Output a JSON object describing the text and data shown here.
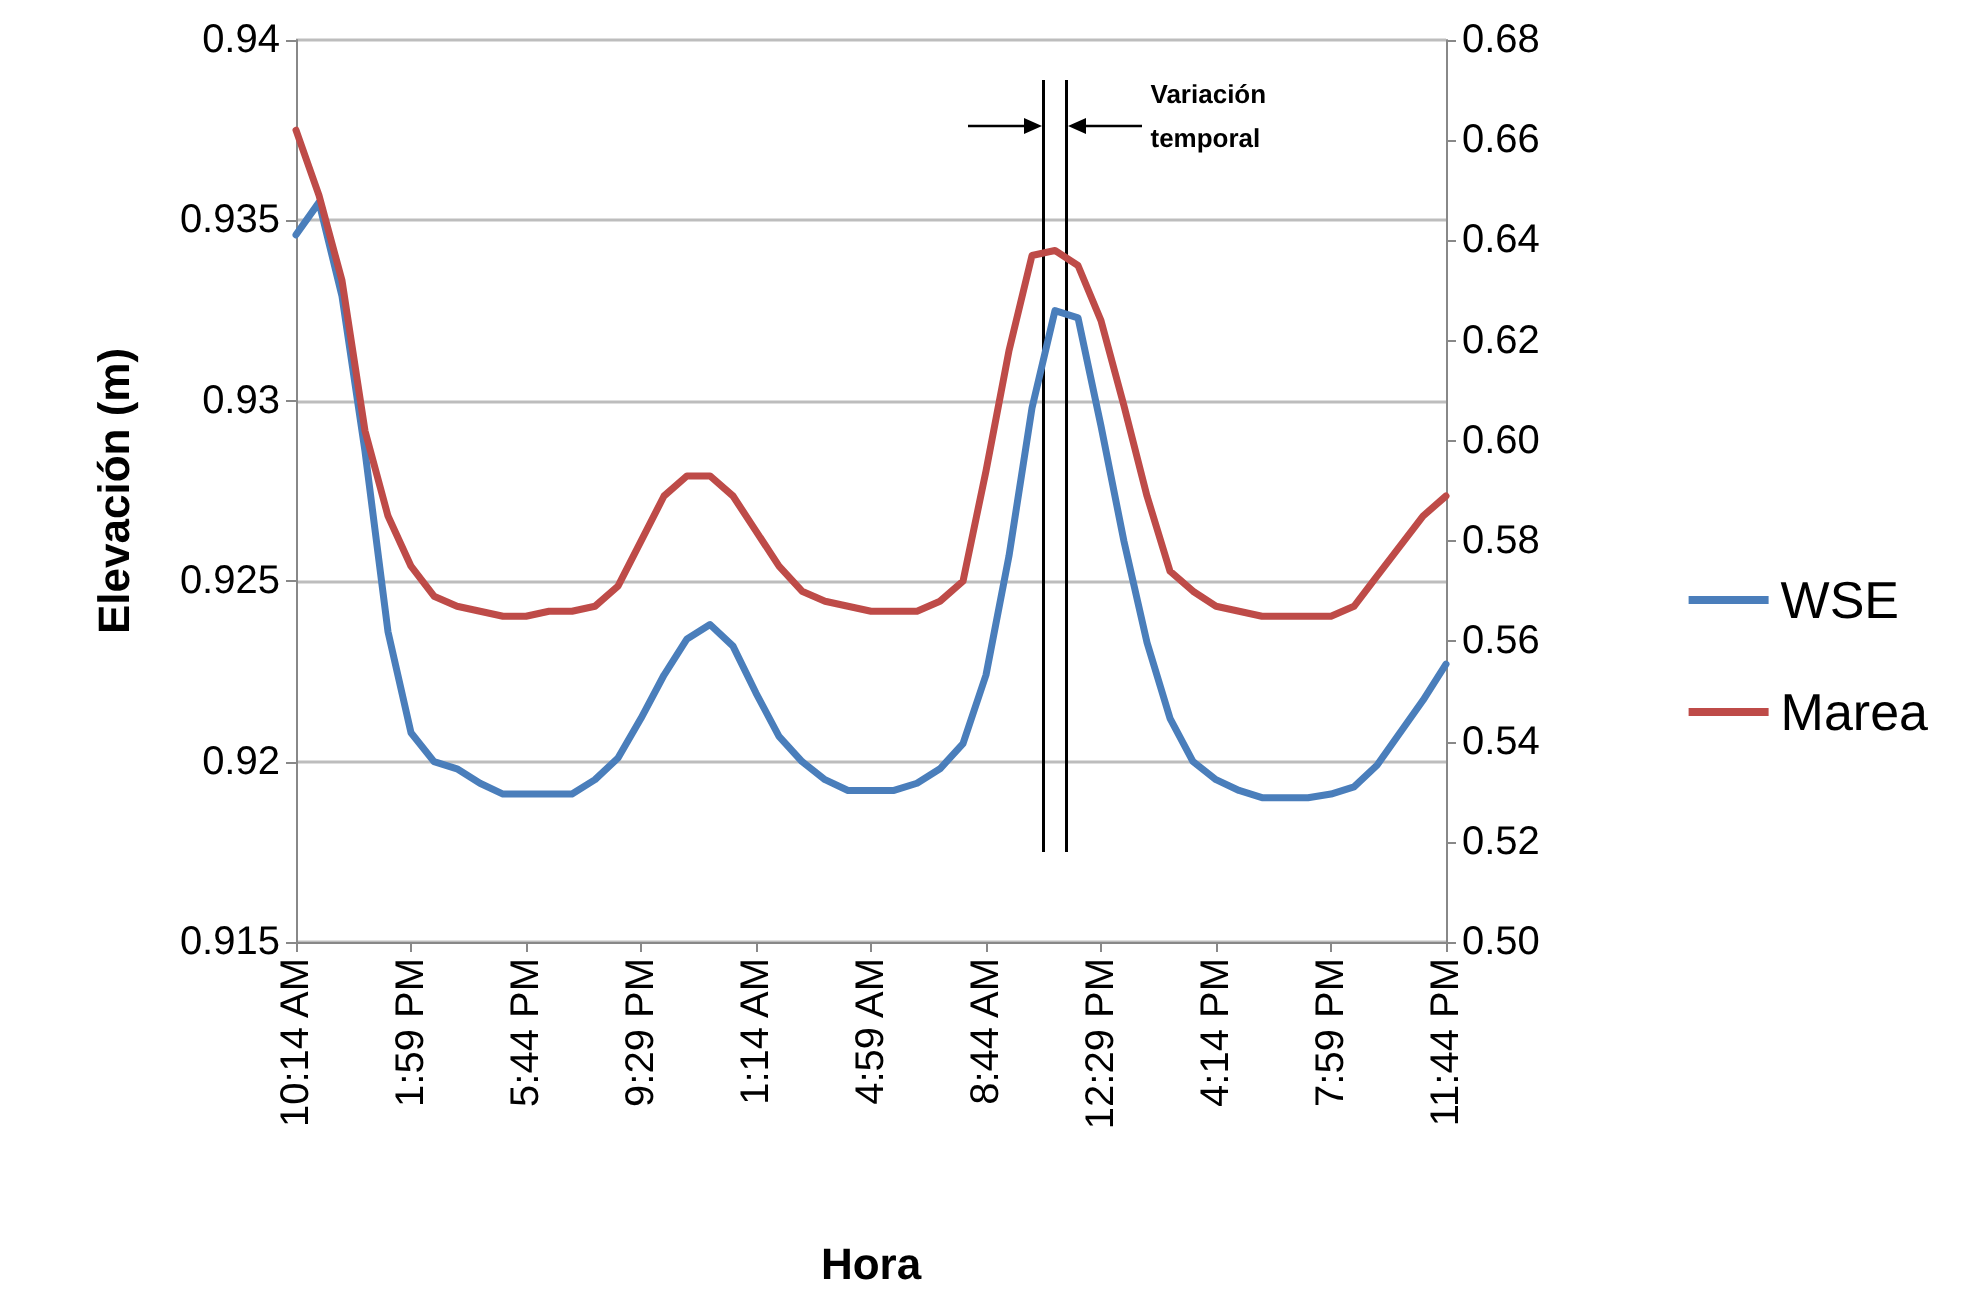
{
  "chart_data": {
    "type": "line",
    "xlabel": "Hora",
    "ylabel": "Elevación (m)",
    "categories": [
      "10:14 AM",
      null,
      null,
      null,
      null,
      "1:59 PM",
      null,
      null,
      null,
      null,
      "5:44 PM",
      null,
      null,
      null,
      null,
      "9:29 PM",
      null,
      null,
      null,
      null,
      "1:14 AM",
      null,
      null,
      null,
      null,
      "4:59 AM",
      null,
      null,
      null,
      null,
      "8:44 AM",
      null,
      null,
      null,
      null,
      "12:29 PM",
      null,
      null,
      null,
      null,
      "4:14 PM",
      null,
      null,
      null,
      null,
      "7:59 PM",
      null,
      null,
      null,
      null,
      "11:44 PM"
    ],
    "ylim": [
      0.915,
      0.94
    ],
    "yticks": [
      0.915,
      0.92,
      0.925,
      0.93,
      0.935,
      0.94
    ],
    "y2lim": [
      0.5,
      0.68
    ],
    "y2ticks": [
      {
        "value": 0.5,
        "label": "0.50"
      },
      {
        "value": 0.52,
        "label": "0.52"
      },
      {
        "value": 0.54,
        "label": "0.54"
      },
      {
        "value": 0.56,
        "label": "0.56"
      },
      {
        "value": 0.58,
        "label": "0.58"
      },
      {
        "value": 0.6,
        "label": "0.60"
      },
      {
        "value": 0.62,
        "label": "0.62"
      },
      {
        "value": 0.64,
        "label": "0.64"
      },
      {
        "value": 0.66,
        "label": "0.66"
      },
      {
        "value": 0.68,
        "label": "0.68"
      }
    ],
    "grid": "y",
    "legend": "right",
    "marker": "none",
    "line_style": "solid",
    "series": [
      {
        "name": "WSE",
        "color": "#4a7ebb",
        "values": [
          0.9346,
          0.9355,
          0.9329,
          0.9286,
          0.9236,
          0.9208,
          0.92,
          0.9198,
          0.9194,
          0.9191,
          0.9191,
          0.9191,
          0.9191,
          0.9195,
          0.9201,
          0.9212,
          0.9224,
          0.9234,
          0.9238,
          0.9232,
          0.9219,
          0.9207,
          0.92,
          0.9195,
          0.9192,
          0.9192,
          0.9192,
          0.9194,
          0.9198,
          0.9205,
          0.9224,
          0.9257,
          0.9298,
          0.9325,
          0.9323,
          0.9293,
          0.9261,
          0.9233,
          0.9212,
          0.92,
          0.9195,
          0.9192,
          0.919,
          0.919,
          0.919,
          0.9191,
          0.9193,
          0.9199,
          0.9208,
          0.9217,
          0.9227
        ]
      },
      {
        "name": "Marea",
        "color": "#be4b48",
        "axis": "y2",
        "values": [
          0.662,
          0.649,
          0.632,
          0.602,
          0.585,
          0.575,
          0.569,
          0.567,
          0.566,
          0.565,
          0.565,
          0.566,
          0.566,
          0.567,
          0.571,
          0.58,
          0.589,
          0.593,
          0.593,
          0.589,
          0.582,
          0.575,
          0.57,
          0.568,
          0.567,
          0.566,
          0.566,
          0.566,
          0.568,
          0.572,
          0.594,
          0.618,
          0.637,
          0.638,
          0.635,
          0.624,
          0.607,
          0.589,
          0.574,
          0.57,
          0.567,
          0.566,
          0.565,
          0.565,
          0.565,
          0.565,
          0.567,
          0.573,
          0.579,
          0.585,
          0.589
        ]
      }
    ],
    "annotations": [
      "Variación temporal"
    ]
  }
}
